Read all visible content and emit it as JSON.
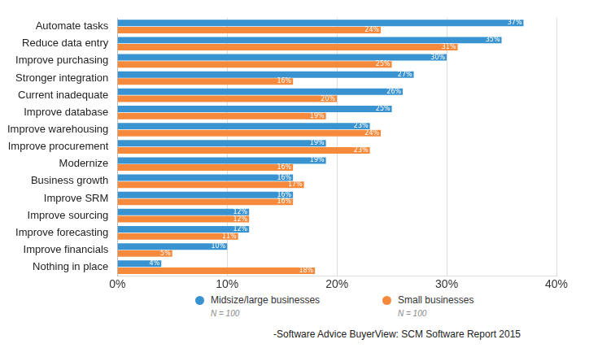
{
  "chart_data": {
    "type": "bar",
    "orientation": "horizontal",
    "categories": [
      "Automate tasks",
      "Reduce data entry",
      "Improve purchasing",
      "Stronger integration",
      "Current inadequate",
      "Improve database",
      "Improve warehousing",
      "Improve procurement",
      "Modernize",
      "Business growth",
      "Improve SRM",
      "Improve sourcing",
      "Improve forecasting",
      "Improve financials",
      "Nothing in place"
    ],
    "series": [
      {
        "name": "Midsize/large businesses",
        "color": "#3a93d1",
        "note": "N = 100",
        "values": [
          37,
          35,
          30,
          27,
          26,
          25,
          23,
          19,
          19,
          16,
          16,
          12,
          12,
          10,
          4
        ],
        "value_labels": [
          "37%",
          "35%",
          "30%",
          "27%",
          "26%",
          "25%",
          "23%",
          "19%",
          "19%",
          "16%",
          "16%",
          "12%",
          "12%",
          "10%",
          "4%"
        ]
      },
      {
        "name": "Small businesses",
        "color": "#f68a3c",
        "note": "N = 100",
        "values": [
          24,
          31,
          25,
          16,
          20,
          19,
          24,
          23,
          16,
          17,
          16,
          12,
          11,
          5,
          18
        ],
        "value_labels": [
          "24%",
          "31%",
          "25%",
          "16%",
          "20%",
          "19%",
          "24%",
          "23%",
          "16%",
          "17%",
          "16%",
          "12%",
          "11%",
          "5%",
          "18%"
        ]
      }
    ],
    "xlim": [
      0,
      40
    ],
    "xticks": [
      {
        "value": 0,
        "label": "0%"
      },
      {
        "value": 10,
        "label": "10%"
      },
      {
        "value": 20,
        "label": "20%"
      },
      {
        "value": 30,
        "label": "30%"
      },
      {
        "value": 40,
        "label": "40%"
      }
    ],
    "grid": true,
    "legend": "bottom",
    "data_labels": true,
    "source": "-Software Advice BuyerView: SCM Software Report 2015"
  }
}
